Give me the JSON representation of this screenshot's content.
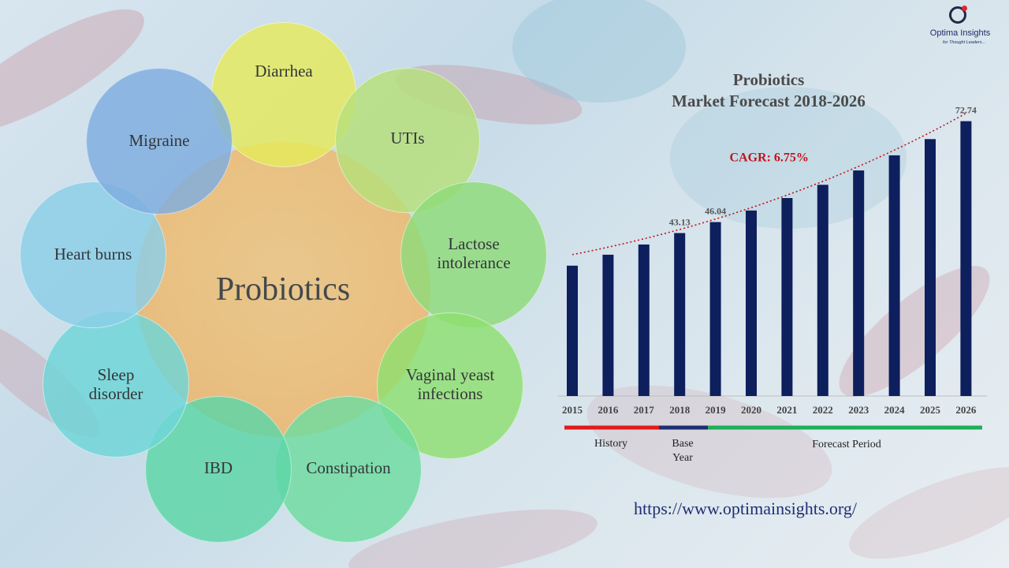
{
  "logo": {
    "name": "Optima Insights",
    "tagline": "for Thought Leaders..."
  },
  "venn": {
    "center": "Probiotics",
    "items": [
      {
        "label": "Diarrhea",
        "color": "#e6ea5c"
      },
      {
        "label": "UTIs",
        "color": "#b7e07a"
      },
      {
        "label": "Lactose intolerance",
        "color": "#8fdc7a"
      },
      {
        "label": "Vaginal yeast infections",
        "color": "#8fe070"
      },
      {
        "label": "Constipation",
        "color": "#6fdca0"
      },
      {
        "label": "IBD",
        "color": "#5dd6a8"
      },
      {
        "label": "Sleep disorder",
        "color": "#6fd6d8"
      },
      {
        "label": "Heart burns",
        "color": "#8ccfe8"
      },
      {
        "label": "Migraine",
        "color": "#7faee0"
      }
    ]
  },
  "chart_data": {
    "type": "bar",
    "title_line1": "Probiotics",
    "title_line2": "Market Forecast 2018-2026",
    "categories": [
      "2015",
      "2016",
      "2017",
      "2018",
      "2019",
      "2020",
      "2021",
      "2022",
      "2023",
      "2024",
      "2025",
      "2026"
    ],
    "values": [
      34.5,
      37.4,
      40.1,
      43.13,
      46.04,
      49.1,
      52.4,
      55.9,
      59.7,
      63.7,
      68.0,
      72.74
    ],
    "labeled": {
      "3": "43.13",
      "4": "46.04",
      "11": "72.74"
    },
    "ylim": [
      0,
      76
    ],
    "bar_color": "#0d1f5c",
    "trend_color": "#c0141c",
    "cagr_label": "CAGR: 6.75%",
    "periods": [
      {
        "label": "History",
        "color": "#e01b1b"
      },
      {
        "label": "Base Year",
        "color": "#1d2f73"
      },
      {
        "label": "Forecast Period",
        "color": "#1fae5a"
      }
    ]
  },
  "footer": {
    "url": "https://www.optimainsights.org/"
  }
}
